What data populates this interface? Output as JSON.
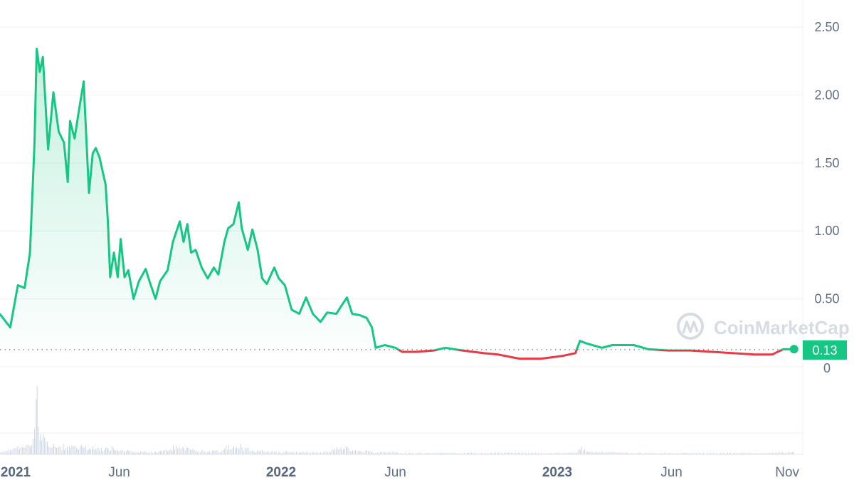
{
  "watermark": "CoinMarketCap",
  "colors": {
    "up": "#16c784",
    "down": "#ea3943",
    "grid": "#eff2f5",
    "axis_text": "#616e85",
    "volume": "#cfd6e4"
  },
  "chart_data": {
    "type": "line",
    "title": "",
    "xlabel": "",
    "ylabel": "",
    "ylim": [
      0,
      2.5
    ],
    "y_ticks": [
      "0",
      "0.50",
      "1.00",
      "1.50",
      "2.00",
      "2.50"
    ],
    "y_tick_values": [
      0,
      0.5,
      1.0,
      1.5,
      2.0,
      2.5
    ],
    "x_ticks": [
      {
        "label": "2021",
        "date": "2021-01-01",
        "bold": true
      },
      {
        "label": "Jun",
        "date": "2021-06-01",
        "bold": false
      },
      {
        "label": "2022",
        "date": "2022-01-01",
        "bold": true
      },
      {
        "label": "Jun",
        "date": "2022-06-01",
        "bold": false
      },
      {
        "label": "2023",
        "date": "2023-01-01",
        "bold": true
      },
      {
        "label": "Jun",
        "date": "2023-06-01",
        "bold": false
      },
      {
        "label": "Nov",
        "date": "2023-11-01",
        "bold": false
      }
    ],
    "grid": true,
    "axis_side": "right",
    "current_price": "0.13",
    "reference_price": 0.126,
    "series": [
      {
        "points": [
          [
            "2020-12-25",
            0.39
          ],
          [
            "2021-01-08",
            0.29
          ],
          [
            "2021-01-18",
            0.6
          ],
          [
            "2021-01-27",
            0.58
          ],
          [
            "2021-02-03",
            0.84
          ],
          [
            "2021-02-09",
            1.65
          ],
          [
            "2021-02-12",
            2.34
          ],
          [
            "2021-02-16",
            2.17
          ],
          [
            "2021-02-20",
            2.28
          ],
          [
            "2021-02-27",
            1.6
          ],
          [
            "2021-03-06",
            2.02
          ],
          [
            "2021-03-13",
            1.73
          ],
          [
            "2021-03-20",
            1.65
          ],
          [
            "2021-03-25",
            1.36
          ],
          [
            "2021-03-28",
            1.81
          ],
          [
            "2021-04-03",
            1.68
          ],
          [
            "2021-04-08",
            1.86
          ],
          [
            "2021-04-15",
            2.1
          ],
          [
            "2021-04-17",
            1.86
          ],
          [
            "2021-04-22",
            1.28
          ],
          [
            "2021-04-27",
            1.57
          ],
          [
            "2021-05-01",
            1.61
          ],
          [
            "2021-05-06",
            1.54
          ],
          [
            "2021-05-14",
            1.34
          ],
          [
            "2021-05-17",
            1.07
          ],
          [
            "2021-05-20",
            0.66
          ],
          [
            "2021-05-25",
            0.84
          ],
          [
            "2021-05-30",
            0.66
          ],
          [
            "2021-06-03",
            0.94
          ],
          [
            "2021-06-08",
            0.66
          ],
          [
            "2021-06-13",
            0.71
          ],
          [
            "2021-06-20",
            0.5
          ],
          [
            "2021-06-27",
            0.63
          ],
          [
            "2021-07-06",
            0.72
          ],
          [
            "2021-07-11",
            0.63
          ],
          [
            "2021-07-19",
            0.5
          ],
          [
            "2021-07-25",
            0.63
          ],
          [
            "2021-08-04",
            0.71
          ],
          [
            "2021-08-11",
            0.92
          ],
          [
            "2021-08-20",
            1.07
          ],
          [
            "2021-08-25",
            0.92
          ],
          [
            "2021-08-30",
            1.05
          ],
          [
            "2021-09-04",
            0.84
          ],
          [
            "2021-09-10",
            0.86
          ],
          [
            "2021-09-18",
            0.73
          ],
          [
            "2021-09-26",
            0.65
          ],
          [
            "2021-10-04",
            0.73
          ],
          [
            "2021-10-10",
            0.68
          ],
          [
            "2021-10-18",
            0.92
          ],
          [
            "2021-10-23",
            1.02
          ],
          [
            "2021-10-30",
            1.05
          ],
          [
            "2021-11-06",
            1.21
          ],
          [
            "2021-11-10",
            1.02
          ],
          [
            "2021-11-18",
            0.86
          ],
          [
            "2021-11-24",
            1.01
          ],
          [
            "2021-12-01",
            0.86
          ],
          [
            "2021-12-07",
            0.65
          ],
          [
            "2021-12-13",
            0.61
          ],
          [
            "2021-12-23",
            0.73
          ],
          [
            "2021-12-29",
            0.65
          ],
          [
            "2022-01-06",
            0.6
          ],
          [
            "2022-01-15",
            0.42
          ],
          [
            "2022-01-25",
            0.39
          ],
          [
            "2022-02-03",
            0.51
          ],
          [
            "2022-02-12",
            0.39
          ],
          [
            "2022-02-22",
            0.33
          ],
          [
            "2022-03-03",
            0.4
          ],
          [
            "2022-03-15",
            0.39
          ],
          [
            "2022-03-22",
            0.45
          ],
          [
            "2022-03-29",
            0.51
          ],
          [
            "2022-04-05",
            0.39
          ],
          [
            "2022-04-15",
            0.38
          ],
          [
            "2022-04-24",
            0.36
          ],
          [
            "2022-05-01",
            0.29
          ],
          [
            "2022-05-06",
            0.14
          ],
          [
            "2022-05-18",
            0.16
          ],
          [
            "2022-06-01",
            0.14
          ],
          [
            "2022-06-10",
            0.11
          ],
          [
            "2022-06-29",
            0.11
          ],
          [
            "2022-07-22",
            0.12
          ],
          [
            "2022-08-06",
            0.14
          ],
          [
            "2022-08-29",
            0.12
          ],
          [
            "2022-09-26",
            0.1
          ],
          [
            "2022-10-15",
            0.09
          ],
          [
            "2022-11-12",
            0.06
          ],
          [
            "2022-12-11",
            0.06
          ],
          [
            "2023-01-08",
            0.08
          ],
          [
            "2023-01-25",
            0.1
          ],
          [
            "2023-01-31",
            0.19
          ],
          [
            "2023-02-10",
            0.17
          ],
          [
            "2023-03-01",
            0.14
          ],
          [
            "2023-03-15",
            0.16
          ],
          [
            "2023-04-12",
            0.16
          ],
          [
            "2023-05-01",
            0.13
          ],
          [
            "2023-05-29",
            0.12
          ],
          [
            "2023-06-26",
            0.12
          ],
          [
            "2023-07-24",
            0.11
          ],
          [
            "2023-08-22",
            0.1
          ],
          [
            "2023-09-19",
            0.09
          ],
          [
            "2023-10-12",
            0.09
          ],
          [
            "2023-10-27",
            0.13
          ],
          [
            "2023-11-10",
            0.13
          ]
        ],
        "volume_relative": [
          0.05,
          0.06,
          0.1,
          0.12,
          0.15,
          0.3,
          1.0,
          0.3,
          0.25,
          0.2,
          0.15,
          0.12,
          0.12,
          0.1,
          0.12,
          0.1,
          0.1,
          0.12,
          0.1,
          0.12,
          0.1,
          0.08,
          0.08,
          0.08,
          0.1,
          0.1,
          0.08,
          0.06,
          0.07,
          0.05,
          0.05,
          0.04,
          0.04,
          0.04,
          0.03,
          0.03,
          0.04,
          0.06,
          0.1,
          0.12,
          0.08,
          0.1,
          0.06,
          0.05,
          0.05,
          0.04,
          0.05,
          0.05,
          0.1,
          0.12,
          0.1,
          0.14,
          0.1,
          0.08,
          0.06,
          0.05,
          0.05,
          0.04,
          0.04,
          0.04,
          0.04,
          0.04,
          0.03,
          0.03,
          0.03,
          0.03,
          0.05,
          0.08,
          0.08,
          0.1,
          0.06,
          0.05,
          0.05,
          0.04,
          0.03,
          0.03,
          0.03,
          0.02,
          0.02,
          0.02,
          0.02,
          0.02,
          0.02,
          0.02,
          0.02,
          0.02,
          0.02,
          0.03,
          0.1,
          0.04,
          0.03,
          0.03,
          0.02,
          0.02,
          0.02,
          0.02,
          0.02,
          0.02,
          0.02,
          0.02,
          0.03,
          0.03
        ]
      }
    ]
  }
}
